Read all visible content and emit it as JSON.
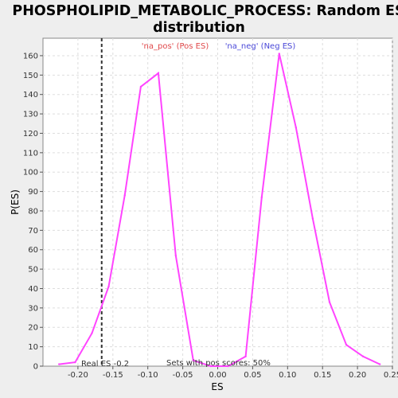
{
  "chart_data": {
    "type": "line",
    "title_line1": "PHOSPHOLIPID_METABOLIC_PROCESS: Random ES",
    "title_line2": "distribution",
    "xlabel": "ES",
    "ylabel": "P(ES)",
    "xlim": [
      -0.25,
      0.25
    ],
    "ylim": [
      0,
      169
    ],
    "x_ticks": [
      -0.2,
      -0.15,
      -0.1,
      -0.05,
      0.0,
      0.05,
      0.1,
      0.15,
      0.2,
      0.25
    ],
    "x_tick_labels": [
      "-0.20",
      "-0.15",
      "-0.10",
      "-0.05",
      "0.00",
      "0.05",
      "0.10",
      "0.15",
      "0.20",
      "0.25"
    ],
    "y_ticks": [
      0,
      10,
      20,
      30,
      40,
      50,
      60,
      70,
      80,
      90,
      100,
      110,
      120,
      130,
      140,
      150,
      160
    ],
    "grid": true,
    "line_color": "#ff44ff",
    "series": [
      {
        "x": [
          -0.227,
          -0.204,
          -0.18,
          -0.156,
          -0.133,
          -0.11,
          -0.085,
          -0.06,
          -0.035,
          -0.01,
          0.015,
          0.04,
          0.063,
          0.088,
          0.112,
          0.136,
          0.16,
          0.184,
          0.208,
          0.232
        ],
        "y": [
          1,
          2,
          17,
          41,
          88,
          144,
          151,
          57,
          3,
          0,
          0,
          5,
          87,
          161,
          123,
          76,
          33,
          11,
          5,
          1
        ]
      }
    ],
    "real_es": -0.166,
    "real_es_label": "Real ES -0.2",
    "legend": {
      "pos": {
        "label": "'na_pos' (Pos ES)",
        "color": "#e0484a"
      },
      "neg": {
        "label": "'na_neg' (Neg ES)",
        "color": "#4a48d8"
      }
    },
    "annotation": "Sets with pos scores: 50%"
  }
}
